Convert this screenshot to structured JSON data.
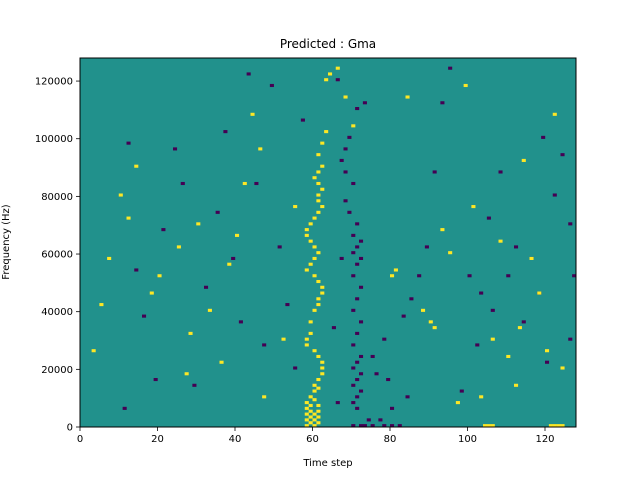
{
  "chart_data": {
    "type": "heatmap",
    "title": "Predicted : Gma",
    "xlabel": "Time step",
    "ylabel": "Frequency (Hz)",
    "xlim": [
      0,
      128
    ],
    "ylim": [
      0,
      128000
    ],
    "x_ticks": [
      0,
      20,
      40,
      60,
      80,
      100,
      120
    ],
    "y_ticks": [
      0,
      20000,
      40000,
      60000,
      80000,
      100000,
      120000
    ],
    "x_tick_labels": [
      "0",
      "20",
      "40",
      "60",
      "80",
      "100",
      "120"
    ],
    "y_tick_labels": [
      "0",
      "20000",
      "40000",
      "60000",
      "80000",
      "100000",
      "120000"
    ],
    "grid": false,
    "colormap": "viridis",
    "value_levels": {
      "low": 0,
      "mid": 0.5,
      "high": 1
    },
    "colors": {
      "low": "#440154",
      "mid": "#21918c",
      "high": "#fde725"
    },
    "background_level": "mid",
    "cells_high": [
      [
        58,
        0
      ],
      [
        58,
        2
      ],
      [
        58,
        4
      ],
      [
        58,
        6
      ],
      [
        58,
        8
      ],
      [
        59,
        1
      ],
      [
        59,
        3
      ],
      [
        59,
        5
      ],
      [
        59,
        7
      ],
      [
        59,
        10
      ],
      [
        60,
        0
      ],
      [
        60,
        2
      ],
      [
        60,
        4
      ],
      [
        60,
        9
      ],
      [
        60,
        12
      ],
      [
        61,
        1
      ],
      [
        61,
        3
      ],
      [
        61,
        5
      ],
      [
        61,
        7
      ],
      [
        61,
        13
      ],
      [
        60,
        14
      ],
      [
        61,
        16
      ],
      [
        62,
        18
      ],
      [
        62,
        20
      ],
      [
        62,
        22
      ],
      [
        61,
        24
      ],
      [
        60,
        26
      ],
      [
        58,
        28
      ],
      [
        58,
        30
      ],
      [
        59,
        32
      ],
      [
        59,
        36
      ],
      [
        60,
        40
      ],
      [
        61,
        42
      ],
      [
        61,
        44
      ],
      [
        62,
        46
      ],
      [
        62,
        48
      ],
      [
        61,
        50
      ],
      [
        60,
        52
      ],
      [
        58,
        54
      ],
      [
        59,
        56
      ],
      [
        60,
        58
      ],
      [
        61,
        60
      ],
      [
        60,
        62
      ],
      [
        59,
        64
      ],
      [
        58,
        66
      ],
      [
        58,
        68
      ],
      [
        59,
        70
      ],
      [
        60,
        72
      ],
      [
        61,
        74
      ],
      [
        62,
        76
      ],
      [
        61,
        78
      ],
      [
        61,
        80
      ],
      [
        62,
        82
      ],
      [
        61,
        84
      ],
      [
        60,
        86
      ],
      [
        61,
        88
      ],
      [
        62,
        90
      ],
      [
        61,
        94
      ],
      [
        62,
        98
      ],
      [
        63,
        102
      ],
      [
        104,
        0
      ],
      [
        105,
        0
      ],
      [
        106,
        0
      ],
      [
        121,
        0
      ],
      [
        122,
        0
      ],
      [
        123,
        0
      ],
      [
        124,
        0
      ],
      [
        10,
        80
      ],
      [
        12,
        72
      ],
      [
        14,
        90
      ],
      [
        18,
        46
      ],
      [
        20,
        52
      ],
      [
        25,
        62
      ],
      [
        27,
        18
      ],
      [
        28,
        32
      ],
      [
        30,
        70
      ],
      [
        33,
        40
      ],
      [
        36,
        22
      ],
      [
        38,
        56
      ],
      [
        40,
        66
      ],
      [
        42,
        84
      ],
      [
        44,
        108
      ],
      [
        46,
        96
      ],
      [
        47,
        10
      ],
      [
        52,
        30
      ],
      [
        55,
        76
      ],
      [
        63,
        120
      ],
      [
        64,
        122
      ],
      [
        66,
        124
      ],
      [
        68,
        114
      ],
      [
        70,
        104
      ],
      [
        80,
        52
      ],
      [
        81,
        54
      ],
      [
        84,
        114
      ],
      [
        88,
        40
      ],
      [
        90,
        36
      ],
      [
        91,
        34
      ],
      [
        93,
        68
      ],
      [
        95,
        60
      ],
      [
        97,
        8
      ],
      [
        99,
        118
      ],
      [
        101,
        76
      ],
      [
        103,
        10
      ],
      [
        106,
        30
      ],
      [
        108,
        64
      ],
      [
        110,
        24
      ],
      [
        112,
        14
      ],
      [
        113,
        34
      ],
      [
        114,
        92
      ],
      [
        116,
        58
      ],
      [
        118,
        46
      ],
      [
        120,
        26
      ],
      [
        122,
        108
      ],
      [
        124,
        20
      ],
      [
        3,
        26
      ],
      [
        5,
        42
      ],
      [
        7,
        58
      ]
    ],
    "cells_low": [
      [
        70,
        0
      ],
      [
        72,
        0
      ],
      [
        74,
        2
      ],
      [
        71,
        6
      ],
      [
        70,
        8
      ],
      [
        71,
        10
      ],
      [
        72,
        12
      ],
      [
        70,
        14
      ],
      [
        71,
        16
      ],
      [
        72,
        18
      ],
      [
        70,
        20
      ],
      [
        71,
        22
      ],
      [
        72,
        24
      ],
      [
        70,
        28
      ],
      [
        71,
        32
      ],
      [
        72,
        36
      ],
      [
        70,
        40
      ],
      [
        71,
        44
      ],
      [
        72,
        48
      ],
      [
        70,
        52
      ],
      [
        71,
        56
      ],
      [
        72,
        58
      ],
      [
        70,
        60
      ],
      [
        71,
        62
      ],
      [
        72,
        64
      ],
      [
        70,
        66
      ],
      [
        71,
        70
      ],
      [
        69,
        74
      ],
      [
        68,
        78
      ],
      [
        70,
        84
      ],
      [
        68,
        88
      ],
      [
        67,
        92
      ],
      [
        68,
        96
      ],
      [
        69,
        100
      ],
      [
        71,
        110
      ],
      [
        73,
        112
      ],
      [
        66,
        120
      ],
      [
        75,
        24
      ],
      [
        76,
        18
      ],
      [
        78,
        30
      ],
      [
        79,
        16
      ],
      [
        80,
        6
      ],
      [
        83,
        38
      ],
      [
        85,
        44
      ],
      [
        87,
        52
      ],
      [
        89,
        62
      ],
      [
        91,
        88
      ],
      [
        93,
        112
      ],
      [
        95,
        124
      ],
      [
        98,
        12
      ],
      [
        100,
        52
      ],
      [
        102,
        28
      ],
      [
        103,
        46
      ],
      [
        105,
        72
      ],
      [
        106,
        40
      ],
      [
        108,
        88
      ],
      [
        110,
        52
      ],
      [
        112,
        62
      ],
      [
        114,
        36
      ],
      [
        116,
        58
      ],
      [
        118,
        46
      ],
      [
        119,
        100
      ],
      [
        120,
        22
      ],
      [
        122,
        80
      ],
      [
        124,
        94
      ],
      [
        126,
        30
      ],
      [
        127,
        52
      ],
      [
        126,
        70
      ],
      [
        11,
        6
      ],
      [
        12,
        98
      ],
      [
        14,
        54
      ],
      [
        16,
        38
      ],
      [
        19,
        16
      ],
      [
        21,
        68
      ],
      [
        24,
        96
      ],
      [
        26,
        84
      ],
      [
        29,
        14
      ],
      [
        32,
        48
      ],
      [
        35,
        74
      ],
      [
        37,
        102
      ],
      [
        39,
        58
      ],
      [
        41,
        36
      ],
      [
        43,
        122
      ],
      [
        45,
        84
      ],
      [
        47,
        28
      ],
      [
        49,
        118
      ],
      [
        51,
        62
      ],
      [
        53,
        42
      ],
      [
        55,
        20
      ],
      [
        57,
        106
      ],
      [
        65,
        34
      ],
      [
        66,
        8
      ],
      [
        67,
        58
      ],
      [
        73,
        0
      ],
      [
        75,
        0
      ],
      [
        77,
        2
      ],
      [
        78,
        0
      ],
      [
        80,
        0
      ],
      [
        82,
        0
      ],
      [
        84,
        10
      ]
    ]
  }
}
